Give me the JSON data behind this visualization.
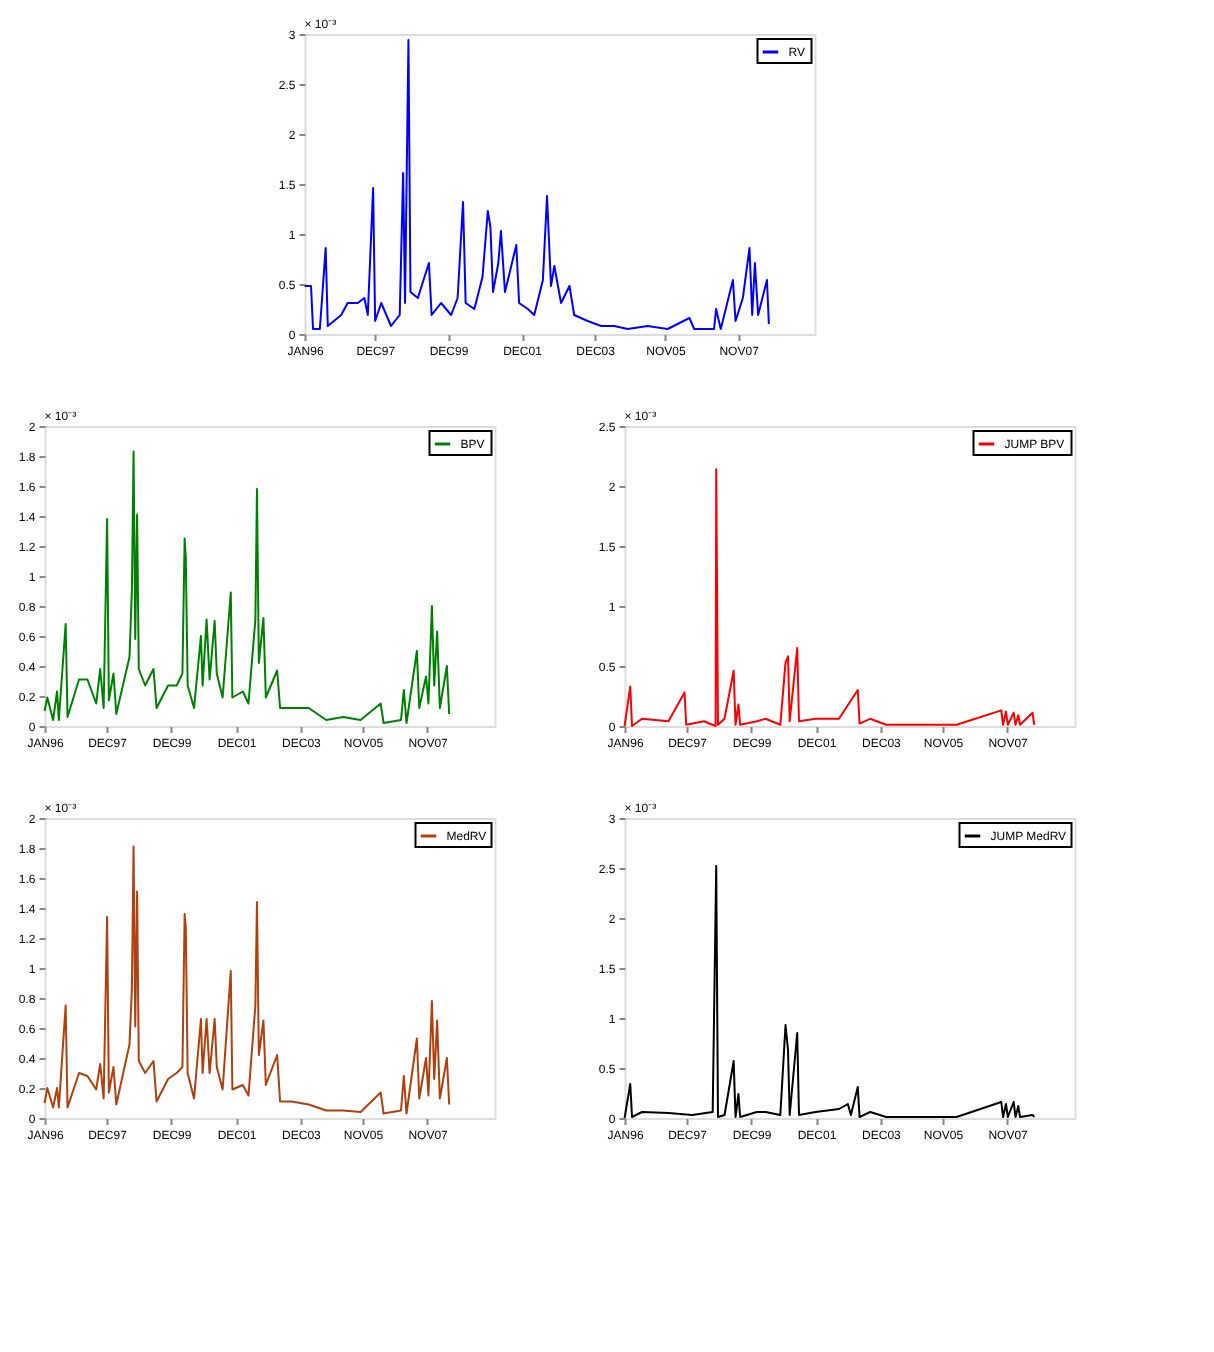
{
  "chart_data": [
    {
      "type": "line",
      "xlim": [
        "1996-01-01",
        "2009-12-01"
      ],
      "xticks": [
        {
          "value": "1996-01-02",
          "label": "JAN96"
        },
        {
          "value": "1997-12-01",
          "label": "DEC97"
        },
        {
          "value": "1999-12-01",
          "label": "DEC99"
        },
        {
          "value": "2001-12-03",
          "label": "DEC01"
        },
        {
          "value": "2003-12-01",
          "label": "DEC03"
        },
        {
          "value": "2005-11-01",
          "label": "NOV05"
        },
        {
          "value": "2007-11-01",
          "label": "NOV07"
        }
      ],
      "ylim": [
        0,
        3
      ],
      "yticks": [
        0,
        0.5,
        1,
        1.5,
        2,
        2.5,
        3
      ],
      "annotations": [
        "× 10⁻³"
      ],
      "legend": "top right",
      "grid": false,
      "series": [
        {
          "name": "RV",
          "color": "#0000ff",
          "x": [
            "1996-01-02",
            "1996-03-06",
            "1996-03-26",
            "1996-06-02",
            "1996-07-30",
            "1996-08-20",
            "1997-01-01",
            "1997-03-06",
            "1997-06-15",
            "1997-08-20",
            "1997-09-23",
            "1997-11-15",
            "1997-12-05",
            "1998-02-04",
            "1998-05-12",
            "1998-08-07",
            "1998-09-10",
            "1998-09-29",
            "1998-11-02",
            "1998-11-22",
            "1999-02-04",
            "1999-05-25",
            "1999-06-21",
            "1999-09-23",
            "2000-01-01",
            "2000-03-06",
            "2000-04-29",
            "2000-05-25",
            "2000-08-20",
            "2000-11-09",
            "2001-01-01",
            "2001-01-27",
            "2001-02-22",
            "2001-04-16",
            "2001-05-12",
            "2001-06-21",
            "2001-10-12",
            "2001-11-09",
            "2002-02-04",
            "2002-04-09",
            "2002-07-04",
            "2002-08-14",
            "2002-09-23",
            "2002-10-26",
            "2003-01-01",
            "2003-03-26",
            "2003-05-12",
            "2003-09-23",
            "2004-02-04",
            "2004-06-15",
            "2004-10-26",
            "2005-05-12",
            "2005-11-28",
            "2006-07-04",
            "2006-08-20",
            "2007-03-06",
            "2007-03-26",
            "2007-05-12",
            "2007-09-10",
            "2007-10-06",
            "2007-12-18",
            "2008-02-22",
            "2008-03-20",
            "2008-04-16",
            "2008-05-18",
            "2008-08-14",
            "2008-09-02"
          ],
          "values": [
            0.48,
            0.48,
            0.05,
            0.05,
            0.86,
            0.08,
            0.19,
            0.31,
            0.31,
            0.36,
            0.19,
            1.46,
            0.13,
            0.31,
            0.08,
            0.19,
            1.61,
            0.31,
            2.94,
            0.42,
            0.36,
            0.71,
            0.19,
            0.31,
            0.19,
            0.36,
            1.32,
            0.31,
            0.25,
            0.57,
            1.23,
            1.07,
            0.42,
            0.71,
            1.03,
            0.42,
            0.89,
            0.31,
            0.25,
            0.19,
            0.54,
            1.38,
            0.48,
            0.68,
            0.31,
            0.48,
            0.19,
            0.13,
            0.08,
            0.08,
            0.05,
            0.08,
            0.05,
            0.16,
            0.05,
            0.05,
            0.25,
            0.05,
            0.54,
            0.13,
            0.36,
            0.86,
            0.19,
            0.71,
            0.19,
            0.54,
            0.1
          ]
        }
      ]
    },
    {
      "type": "line",
      "xlim": [
        "1996-01-01",
        "2009-12-01"
      ],
      "xticks": [
        {
          "value": "1996-01-02",
          "label": "JAN96"
        },
        {
          "value": "1997-12-01",
          "label": "DEC97"
        },
        {
          "value": "1999-12-01",
          "label": "DEC99"
        },
        {
          "value": "2001-12-03",
          "label": "DEC01"
        },
        {
          "value": "2003-12-01",
          "label": "DEC03"
        },
        {
          "value": "2005-11-01",
          "label": "NOV05"
        },
        {
          "value": "2007-11-01",
          "label": "NOV07"
        }
      ],
      "ylim": [
        0,
        2
      ],
      "yticks": [
        0,
        0.2,
        0.4,
        0.6,
        0.8,
        1,
        1.2,
        1.4,
        1.6,
        1.8,
        2
      ],
      "annotations": [
        "× 10⁻³"
      ],
      "legend": "top right",
      "grid": false,
      "series": [
        {
          "name": "BPV",
          "color": "#008000",
          "x": [
            "1996-01-02",
            "1996-02-02",
            "1996-04-07",
            "1996-05-22",
            "1996-06-11",
            "1996-08-27",
            "1996-09-17",
            "1997-01-25",
            "1997-04-30",
            "1997-08-07",
            "1997-09-21",
            "1997-10-30",
            "1997-12-08",
            "1997-12-28",
            "1998-02-18",
            "1998-03-22",
            "1998-08-18",
            "1998-09-14",
            "1998-10-03",
            "1998-10-22",
            "1998-11-12",
            "1998-12-01",
            "1999-02-11",
            "1999-05-16",
            "1999-06-20",
            "1999-10-28",
            "2000-02-02",
            "2000-04-07",
            "2000-05-02",
            "2000-05-15",
            "2000-06-05",
            "2000-08-16",
            "2000-11-02",
            "2000-11-21",
            "2001-01-05",
            "2001-02-08",
            "2001-04-06",
            "2001-04-30",
            "2001-07-05",
            "2001-10-05",
            "2001-10-23",
            "2002-02-18",
            "2002-04-23",
            "2002-07-10",
            "2002-07-28",
            "2002-08-18",
            "2002-10-09",
            "2002-11-05",
            "2003-03-13",
            "2003-04-15",
            "2003-08-23",
            "2004-03-04",
            "2004-09-17",
            "2005-03-29",
            "2005-10-10",
            "2006-05-25",
            "2006-06-27",
            "2007-01-10",
            "2007-02-11",
            "2007-03-13",
            "2007-07-08",
            "2007-08-04",
            "2007-10-20",
            "2007-11-16",
            "2007-12-25",
            "2008-01-20",
            "2008-02-22",
            "2008-03-24",
            "2008-06-11",
            "2008-07-07"
          ],
          "values": [
            0.1,
            0.19,
            0.04,
            0.23,
            0.04,
            0.68,
            0.06,
            0.31,
            0.31,
            0.15,
            0.38,
            0.12,
            1.38,
            0.17,
            0.35,
            0.08,
            0.46,
            0.9,
            1.83,
            0.58,
            1.41,
            0.38,
            0.27,
            0.38,
            0.12,
            0.27,
            0.27,
            0.35,
            1.25,
            1.12,
            0.27,
            0.12,
            0.6,
            0.27,
            0.71,
            0.31,
            0.7,
            0.35,
            0.19,
            0.89,
            0.19,
            0.23,
            0.15,
            0.71,
            1.58,
            0.42,
            0.72,
            0.19,
            0.37,
            0.12,
            0.12,
            0.12,
            0.04,
            0.06,
            0.04,
            0.15,
            0.02,
            0.04,
            0.24,
            0.02,
            0.5,
            0.12,
            0.33,
            0.15,
            0.8,
            0.27,
            0.63,
            0.12,
            0.4,
            0.08
          ]
        }
      ]
    },
    {
      "type": "line",
      "xlim": [
        "1996-01-01",
        "2009-12-01"
      ],
      "xticks": [
        {
          "value": "1996-01-02",
          "label": "JAN96"
        },
        {
          "value": "1997-12-01",
          "label": "DEC97"
        },
        {
          "value": "1999-12-01",
          "label": "DEC99"
        },
        {
          "value": "2001-12-03",
          "label": "DEC01"
        },
        {
          "value": "2003-12-01",
          "label": "DEC03"
        },
        {
          "value": "2005-11-01",
          "label": "NOV05"
        },
        {
          "value": "2007-11-01",
          "label": "NOV07"
        }
      ],
      "ylim": [
        0,
        2.5
      ],
      "yticks": [
        0,
        0.5,
        1,
        1.5,
        2,
        2.5
      ],
      "annotations": [
        "× 10⁻³"
      ],
      "legend": "top right",
      "grid": false,
      "series": [
        {
          "name": "JUMP BPV",
          "color": "#ff0000",
          "x": [
            "1996-01-02",
            "1996-03-06",
            "1996-03-26",
            "1996-07-17",
            "1997-05-12",
            "1997-11-09",
            "1997-11-28",
            "1998-06-15",
            "1998-10-26",
            "1998-11-02",
            "1998-11-22",
            "1999-02-04",
            "1999-05-18",
            "1999-06-08",
            "1999-07-11",
            "1999-07-30",
            "2000-02-04",
            "2000-05-12",
            "2000-10-26",
            "2000-12-24",
            "2001-01-21",
            "2001-02-09",
            "2001-05-05",
            "2001-05-25",
            "2001-11-28",
            "2002-08-20",
            "2003-03-20",
            "2003-04-09",
            "2003-08-07",
            "2004-02-04",
            "2005-05-12",
            "2006-04-09",
            "2007-08-27",
            "2007-09-16",
            "2007-10-19",
            "2007-11-09",
            "2008-01-14",
            "2008-02-04",
            "2008-03-06",
            "2008-03-26",
            "2008-08-14",
            "2008-09-02"
          ],
          "values": [
            0,
            0.33,
            0,
            0.06,
            0.04,
            0.28,
            0.01,
            0.04,
            0,
            2.14,
            0.01,
            0.06,
            0.46,
            0.01,
            0.18,
            0.01,
            0.04,
            0.06,
            0.01,
            0.53,
            0.58,
            0.04,
            0.65,
            0.04,
            0.06,
            0.06,
            0.3,
            0.02,
            0.06,
            0.01,
            0.01,
            0.01,
            0.13,
            0.01,
            0.12,
            0.01,
            0.11,
            0.01,
            0.09,
            0.01,
            0.11,
            0.01
          ]
        }
      ]
    },
    {
      "type": "line",
      "xlim": [
        "1996-01-01",
        "2009-12-01"
      ],
      "xticks": [
        {
          "value": "1996-01-02",
          "label": "JAN96"
        },
        {
          "value": "1997-12-01",
          "label": "DEC97"
        },
        {
          "value": "1999-12-01",
          "label": "DEC99"
        },
        {
          "value": "2001-12-03",
          "label": "DEC01"
        },
        {
          "value": "2003-12-01",
          "label": "DEC03"
        },
        {
          "value": "2005-11-01",
          "label": "NOV05"
        },
        {
          "value": "2007-11-01",
          "label": "NOV07"
        }
      ],
      "ylim": [
        0,
        2
      ],
      "yticks": [
        0,
        0.2,
        0.4,
        0.6,
        0.8,
        1,
        1.2,
        1.4,
        1.6,
        1.8,
        2
      ],
      "annotations": [
        "× 10⁻³"
      ],
      "legend": "top right",
      "grid": false,
      "series": [
        {
          "name": "MedRV",
          "color": "#b0400c",
          "x": [
            "1996-01-02",
            "1996-02-02",
            "1996-04-07",
            "1996-05-22",
            "1996-06-11",
            "1996-08-27",
            "1996-09-17",
            "1997-01-25",
            "1997-04-30",
            "1997-08-07",
            "1997-09-21",
            "1997-10-30",
            "1997-12-08",
            "1997-12-28",
            "1998-02-18",
            "1998-03-22",
            "1998-08-18",
            "1998-09-14",
            "1998-10-03",
            "1998-10-22",
            "1998-11-12",
            "1998-12-01",
            "1999-02-11",
            "1999-05-16",
            "1999-06-20",
            "1999-10-28",
            "2000-02-02",
            "2000-04-07",
            "2000-05-02",
            "2000-05-15",
            "2000-06-05",
            "2000-08-16",
            "2000-11-02",
            "2000-11-21",
            "2001-01-05",
            "2001-02-08",
            "2001-04-06",
            "2001-04-30",
            "2001-07-05",
            "2001-10-05",
            "2001-10-23",
            "2002-02-18",
            "2002-04-23",
            "2002-07-10",
            "2002-07-28",
            "2002-08-18",
            "2002-10-09",
            "2002-11-05",
            "2003-03-13",
            "2003-04-15",
            "2003-08-23",
            "2004-03-04",
            "2004-09-17",
            "2005-03-29",
            "2005-10-10",
            "2006-05-25",
            "2006-06-27",
            "2007-01-10",
            "2007-02-11",
            "2007-03-13",
            "2007-07-08",
            "2007-08-04",
            "2007-10-20",
            "2007-11-16",
            "2007-12-25",
            "2008-01-20",
            "2008-02-22",
            "2008-03-24",
            "2008-06-11",
            "2008-07-07"
          ],
          "values": [
            0.1,
            0.2,
            0.07,
            0.2,
            0.07,
            0.75,
            0.07,
            0.3,
            0.28,
            0.19,
            0.36,
            0.13,
            1.34,
            0.17,
            0.34,
            0.09,
            0.49,
            0.86,
            1.81,
            0.61,
            1.51,
            0.38,
            0.3,
            0.38,
            0.11,
            0.26,
            0.3,
            0.34,
            1.36,
            1.27,
            0.3,
            0.13,
            0.66,
            0.3,
            0.66,
            0.3,
            0.66,
            0.34,
            0.19,
            0.98,
            0.19,
            0.22,
            0.15,
            0.75,
            1.44,
            0.42,
            0.65,
            0.22,
            0.42,
            0.11,
            0.11,
            0.09,
            0.05,
            0.05,
            0.04,
            0.17,
            0.03,
            0.05,
            0.28,
            0.03,
            0.53,
            0.13,
            0.4,
            0.15,
            0.78,
            0.26,
            0.65,
            0.13,
            0.4,
            0.09
          ]
        }
      ]
    },
    {
      "type": "line",
      "xlim": [
        "1996-01-01",
        "2009-12-01"
      ],
      "xticks": [
        {
          "value": "1996-01-02",
          "label": "JAN96"
        },
        {
          "value": "1997-12-01",
          "label": "DEC97"
        },
        {
          "value": "1999-12-01",
          "label": "DEC99"
        },
        {
          "value": "2001-12-03",
          "label": "DEC01"
        },
        {
          "value": "2003-12-01",
          "label": "DEC03"
        },
        {
          "value": "2005-11-01",
          "label": "NOV05"
        },
        {
          "value": "2007-11-01",
          "label": "NOV07"
        }
      ],
      "ylim": [
        0,
        3
      ],
      "yticks": [
        0,
        0.5,
        1,
        1.5,
        2,
        2.5,
        3
      ],
      "annotations": [
        "× 10⁻³"
      ],
      "legend": "top right",
      "grid": false,
      "series": [
        {
          "name": "JUMP MedRV",
          "color": "#000000",
          "x": [
            "1996-01-02",
            "1996-03-06",
            "1996-03-26",
            "1996-07-17",
            "1997-05-12",
            "1998-02-04",
            "1998-09-23",
            "1998-11-02",
            "1998-11-22",
            "1999-02-04",
            "1999-05-18",
            "1999-06-08",
            "1999-07-11",
            "1999-07-30",
            "2000-02-04",
            "2000-05-12",
            "2000-10-26",
            "2000-12-24",
            "2001-01-21",
            "2001-02-09",
            "2001-05-05",
            "2001-05-25",
            "2001-11-28",
            "2002-08-20",
            "2002-11-28",
            "2003-01-01",
            "2003-03-20",
            "2003-04-09",
            "2003-08-07",
            "2004-02-04",
            "2005-05-12",
            "2006-04-09",
            "2007-08-27",
            "2007-09-16",
            "2007-10-19",
            "2007-11-09",
            "2008-01-14",
            "2008-02-04",
            "2008-03-06",
            "2008-03-26",
            "2008-08-14",
            "2008-09-02"
          ],
          "values": [
            0,
            0.34,
            0.01,
            0.06,
            0.05,
            0.03,
            0.06,
            2.52,
            0.01,
            0.03,
            0.57,
            0.01,
            0.24,
            0.01,
            0.06,
            0.06,
            0.03,
            0.93,
            0.68,
            0.03,
            0.85,
            0.03,
            0.06,
            0.09,
            0.14,
            0.03,
            0.31,
            0.01,
            0.06,
            0.01,
            0.01,
            0.01,
            0.16,
            0.01,
            0.14,
            0.01,
            0.16,
            0.01,
            0.12,
            0.01,
            0.03,
            0.01
          ]
        }
      ]
    }
  ]
}
